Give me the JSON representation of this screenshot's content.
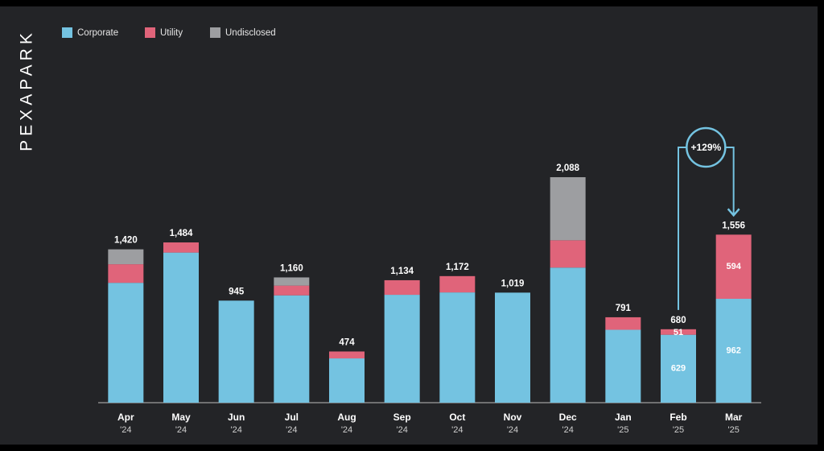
{
  "brand": "PEXAPARK",
  "chart_data": {
    "type": "stacked_bar",
    "categories": [
      [
        "Apr",
        "'24"
      ],
      [
        "May",
        "'24"
      ],
      [
        "Jun",
        "'24"
      ],
      [
        "Jul",
        "'24"
      ],
      [
        "Aug",
        "'24"
      ],
      [
        "Sep",
        "'24"
      ],
      [
        "Oct",
        "'24"
      ],
      [
        "Nov",
        "'24"
      ],
      [
        "Dec",
        "'24"
      ],
      [
        "Jan",
        "'25"
      ],
      [
        "Feb",
        "'25"
      ],
      [
        "Mar",
        "'25"
      ]
    ],
    "series": [
      {
        "name": "Corporate",
        "color": "#74c3e1",
        "values": [
          1110,
          1390,
          945,
          994,
          410,
          999,
          1021,
          1019,
          1251,
          675,
          629,
          962
        ],
        "value_labels": [
          null,
          null,
          null,
          null,
          null,
          null,
          null,
          null,
          null,
          null,
          "629",
          "962"
        ]
      },
      {
        "name": "Utility",
        "color": "#e0647a",
        "values": [
          172,
          94,
          0,
          90,
          64,
          135,
          151,
          0,
          253,
          116,
          51,
          594
        ],
        "value_labels": [
          null,
          null,
          null,
          null,
          null,
          null,
          null,
          null,
          null,
          null,
          "51",
          "594"
        ]
      },
      {
        "name": "Undisclosed",
        "color": "#9d9ea1",
        "values": [
          138,
          0,
          0,
          76,
          0,
          0,
          0,
          0,
          584,
          0,
          0,
          0
        ]
      }
    ],
    "totals": [
      1420,
      1484,
      945,
      1160,
      474,
      1134,
      1172,
      1019,
      2088,
      791,
      680,
      1556
    ],
    "total_labels": [
      "1,420",
      "1,484",
      "945",
      "1,160",
      "474",
      "1,134",
      "1,172",
      "1,019",
      "2,088",
      "791",
      "680",
      "1,556"
    ],
    "ylim": [
      0,
      2200
    ],
    "annotation": "+129%",
    "legend": "top-left"
  }
}
